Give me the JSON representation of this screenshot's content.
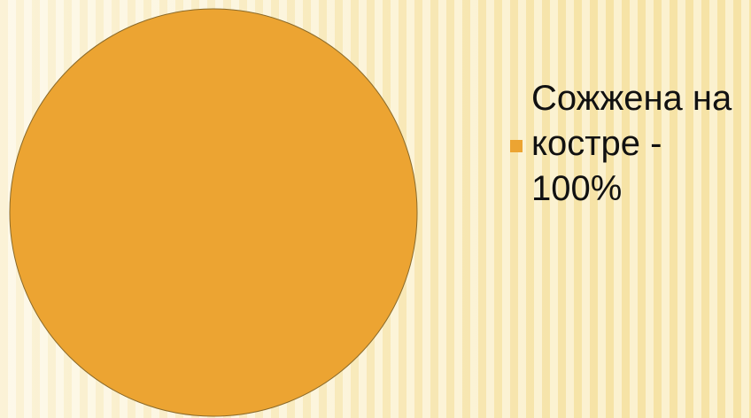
{
  "chart_data": {
    "type": "pie",
    "title": "",
    "slices": [
      {
        "label": "Сожжена на костре",
        "value": 100,
        "color": "#ECA432"
      }
    ],
    "legend": {
      "placement": "right",
      "entries": [
        {
          "text": "Сожжена на костре - 100%",
          "color": "#ECA432"
        }
      ]
    }
  }
}
